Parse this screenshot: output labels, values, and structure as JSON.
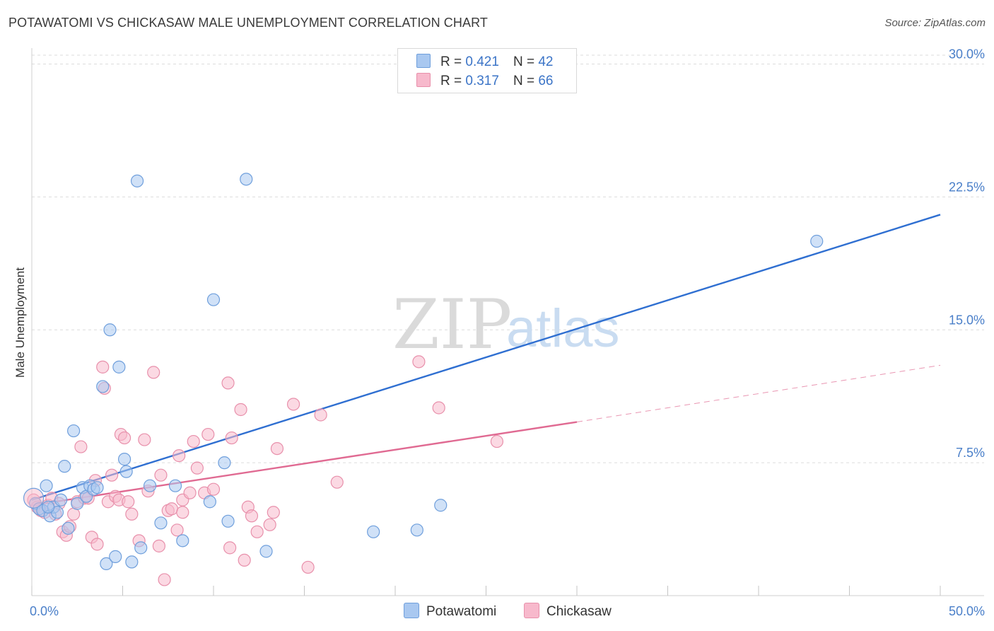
{
  "header": {
    "title": "POTAWATOMI VS CHICKASAW MALE UNEMPLOYMENT CORRELATION CHART",
    "source": "Source: ZipAtlas.com"
  },
  "watermark": {
    "zip": "ZIP",
    "atlas": "atlas"
  },
  "legend": {
    "potawatomi": {
      "r_label": "R =",
      "r_value": "0.421",
      "n_label": "N =",
      "n_value": "42"
    },
    "chickasaw": {
      "r_label": "R =",
      "r_value": "0.317",
      "n_label": "N =",
      "n_value": "66"
    }
  },
  "bottom_legend": {
    "potawatomi": "Potawatomi",
    "chickasaw": "Chickasaw"
  },
  "colors": {
    "potawatomi_fill": "#a9c8f0",
    "potawatomi_stroke": "#6f9fdc",
    "potawatomi_line": "#2f6fd1",
    "chickasaw_fill": "#f7b9cc",
    "chickasaw_stroke": "#e890ab",
    "chickasaw_line": "#e06a92",
    "tick": "#4a7fc9",
    "grid": "#dcdcdc"
  },
  "chart_data": {
    "type": "scatter",
    "title": "POTAWATOMI VS CHICKASAW MALE UNEMPLOYMENT CORRELATION CHART",
    "xlabel": "",
    "ylabel": "Male Unemployment",
    "xlim": [
      0,
      50
    ],
    "ylim": [
      0,
      30.5
    ],
    "x_tick_labels": [
      "0.0%",
      "50.0%"
    ],
    "y_ticks": [
      7.5,
      15.0,
      22.5,
      30.0
    ],
    "y_tick_labels": [
      "7.5%",
      "15.0%",
      "22.5%",
      "30.0%"
    ],
    "series": [
      {
        "name": "Potawatomi",
        "r": 0.421,
        "n": 42,
        "trend": {
          "x": [
            0,
            50
          ],
          "y": [
            5.4,
            21.5
          ]
        },
        "points": [
          [
            0.2,
            5.2
          ],
          [
            0.4,
            4.9
          ],
          [
            0.6,
            4.8
          ],
          [
            0.8,
            6.2
          ],
          [
            1.0,
            4.5
          ],
          [
            1.2,
            5.0
          ],
          [
            1.4,
            4.7
          ],
          [
            1.6,
            5.4
          ],
          [
            1.8,
            7.3
          ],
          [
            2.0,
            3.8
          ],
          [
            2.3,
            9.3
          ],
          [
            2.5,
            5.2
          ],
          [
            2.8,
            6.1
          ],
          [
            3.0,
            5.6
          ],
          [
            3.2,
            6.2
          ],
          [
            3.4,
            6.0
          ],
          [
            3.6,
            6.1
          ],
          [
            3.9,
            11.8
          ],
          [
            4.1,
            1.8
          ],
          [
            4.3,
            15.0
          ],
          [
            4.6,
            2.2
          ],
          [
            4.8,
            12.9
          ],
          [
            5.1,
            7.7
          ],
          [
            5.2,
            7.0
          ],
          [
            5.5,
            1.9
          ],
          [
            5.8,
            23.4
          ],
          [
            6.0,
            2.7
          ],
          [
            6.5,
            6.2
          ],
          [
            7.1,
            4.1
          ],
          [
            7.9,
            6.2
          ],
          [
            8.3,
            3.1
          ],
          [
            9.8,
            5.3
          ],
          [
            10.0,
            16.7
          ],
          [
            10.6,
            7.5
          ],
          [
            10.8,
            4.2
          ],
          [
            11.8,
            23.5
          ],
          [
            12.9,
            2.5
          ],
          [
            18.8,
            3.6
          ],
          [
            21.2,
            3.7
          ],
          [
            22.5,
            5.1
          ],
          [
            43.2,
            20.0
          ],
          [
            0.9,
            5.0
          ]
        ]
      },
      {
        "name": "Chickasaw",
        "r": 0.317,
        "n": 66,
        "trend": {
          "x": [
            0,
            30
          ],
          "y": [
            5.1,
            9.8
          ]
        },
        "trend_dashed": {
          "x": [
            30,
            50
          ],
          "y": [
            9.8,
            13.0
          ]
        },
        "points": [
          [
            0.1,
            5.4
          ],
          [
            0.3,
            5.0
          ],
          [
            0.5,
            4.8
          ],
          [
            0.7,
            4.7
          ],
          [
            0.9,
            5.1
          ],
          [
            1.1,
            5.5
          ],
          [
            1.3,
            4.6
          ],
          [
            1.5,
            5.2
          ],
          [
            1.7,
            3.6
          ],
          [
            1.9,
            3.4
          ],
          [
            2.1,
            3.9
          ],
          [
            2.3,
            4.6
          ],
          [
            2.5,
            5.3
          ],
          [
            2.7,
            8.4
          ],
          [
            2.9,
            5.5
          ],
          [
            3.1,
            5.5
          ],
          [
            3.3,
            3.3
          ],
          [
            3.5,
            6.5
          ],
          [
            3.6,
            2.9
          ],
          [
            3.9,
            12.9
          ],
          [
            4.0,
            11.7
          ],
          [
            4.2,
            5.3
          ],
          [
            4.4,
            6.8
          ],
          [
            4.6,
            5.6
          ],
          [
            4.8,
            5.4
          ],
          [
            4.9,
            9.1
          ],
          [
            5.1,
            8.9
          ],
          [
            5.3,
            5.3
          ],
          [
            5.5,
            4.6
          ],
          [
            5.9,
            3.1
          ],
          [
            6.2,
            8.8
          ],
          [
            6.4,
            5.9
          ],
          [
            6.7,
            12.6
          ],
          [
            7.0,
            2.8
          ],
          [
            7.1,
            6.8
          ],
          [
            7.3,
            0.9
          ],
          [
            7.5,
            4.8
          ],
          [
            7.7,
            4.9
          ],
          [
            8.0,
            3.7
          ],
          [
            8.1,
            7.9
          ],
          [
            8.3,
            4.7
          ],
          [
            8.3,
            5.4
          ],
          [
            8.7,
            5.8
          ],
          [
            8.9,
            8.7
          ],
          [
            9.1,
            7.2
          ],
          [
            9.5,
            5.8
          ],
          [
            9.7,
            9.1
          ],
          [
            10.0,
            6.0
          ],
          [
            10.8,
            12.0
          ],
          [
            10.9,
            2.7
          ],
          [
            11.0,
            8.9
          ],
          [
            11.5,
            10.5
          ],
          [
            11.7,
            2.0
          ],
          [
            11.9,
            5.0
          ],
          [
            12.1,
            4.5
          ],
          [
            12.4,
            3.6
          ],
          [
            13.1,
            4.0
          ],
          [
            13.3,
            4.7
          ],
          [
            13.5,
            8.3
          ],
          [
            14.4,
            10.8
          ],
          [
            15.2,
            1.6
          ],
          [
            15.9,
            10.2
          ],
          [
            16.8,
            6.4
          ],
          [
            21.3,
            13.2
          ],
          [
            22.4,
            10.6
          ],
          [
            25.6,
            8.7
          ]
        ]
      }
    ]
  }
}
